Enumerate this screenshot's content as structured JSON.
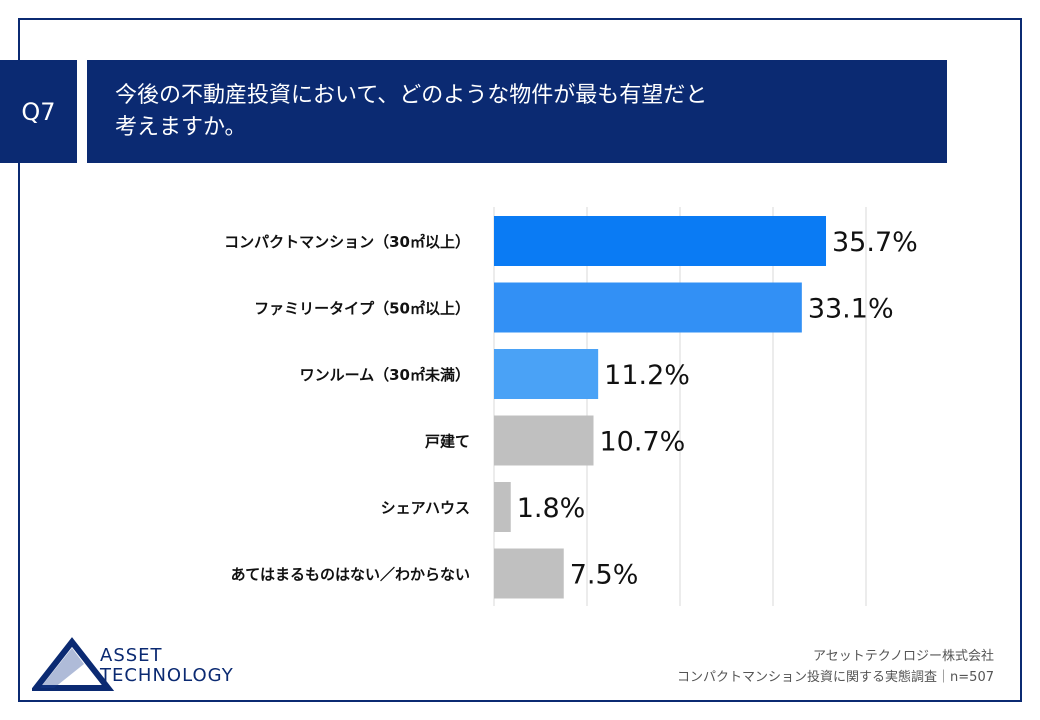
{
  "question": {
    "number": "Q7",
    "title_line1": "今後の不動産投資において、どのような物件が最も有望だと",
    "title_line2": "考えますか。"
  },
  "chart_data": {
    "type": "bar",
    "orientation": "horizontal",
    "categories": [
      "コンパクトマンション（30㎡以上）",
      "ファミリータイプ（50㎡以上）",
      "ワンルーム（30㎡未満）",
      "戸建て",
      "シェアハウス",
      "あてはまるものはない／わからない"
    ],
    "values": [
      35.7,
      33.1,
      11.2,
      10.7,
      1.8,
      7.5
    ],
    "value_labels": [
      "35.7%",
      "33.1%",
      "11.2%",
      "10.7%",
      "1.8%",
      "7.5%"
    ],
    "unit": "%",
    "xlim": [
      0,
      40
    ],
    "grid": true,
    "bar_colors": [
      "#0a7bf4",
      "#3290f5",
      "#4aa2f6",
      "#c0c0c0",
      "#c0c0c0",
      "#c0c0c0"
    ]
  },
  "footer": {
    "company": "アセットテクノロジー株式会社",
    "survey": "コンパクトマンション投資に関する実態調査｜n=507"
  },
  "logo": {
    "line1": "ASSET",
    "line2": "TECHNOLOGY"
  },
  "colors": {
    "navy": "#0b2a72"
  }
}
